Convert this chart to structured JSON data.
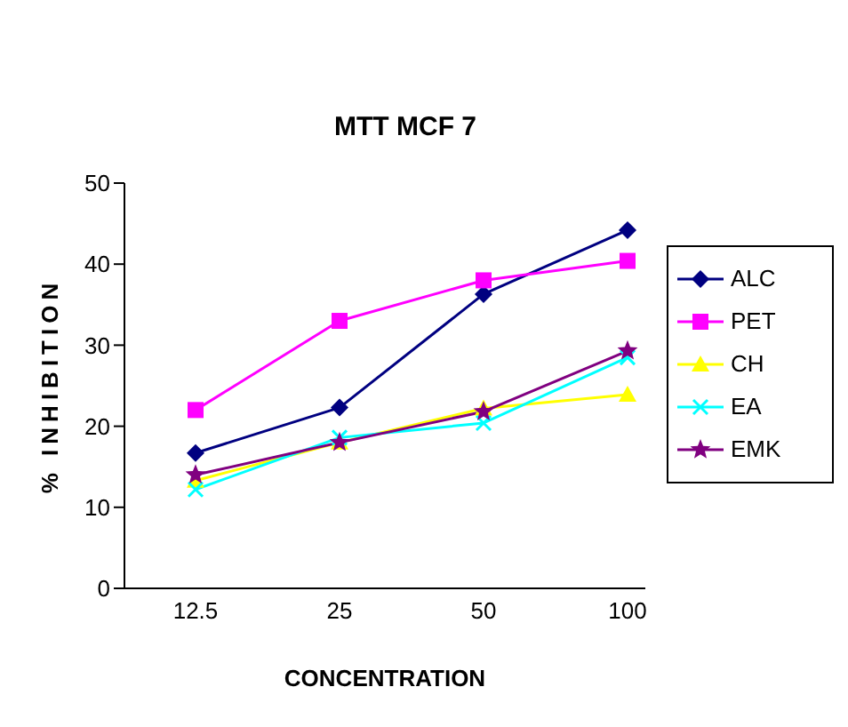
{
  "chart_data": {
    "type": "line",
    "title": "MTT MCF 7",
    "xlabel": "CONCENTRATION",
    "ylabel": "% INHIBITION",
    "categories": [
      "12.5",
      "25",
      "50",
      "100"
    ],
    "series": [
      {
        "name": "ALC",
        "color": "#000080",
        "marker": "diamond",
        "values": [
          16.7,
          22.3,
          36.3,
          44.2
        ]
      },
      {
        "name": "PET",
        "color": "#ff00ff",
        "marker": "square",
        "values": [
          22,
          33,
          38,
          40.4
        ]
      },
      {
        "name": "CH",
        "color": "#ffff00",
        "marker": "triangle",
        "values": [
          13.3,
          18,
          22.2,
          23.9
        ]
      },
      {
        "name": "EA",
        "color": "#00ffff",
        "marker": "cross",
        "values": [
          12.2,
          18.6,
          20.4,
          28.5
        ]
      },
      {
        "name": "EMK",
        "color": "#800080",
        "marker": "star",
        "values": [
          14,
          18,
          21.8,
          29.3
        ]
      }
    ],
    "ylim": [
      0,
      50
    ],
    "yticks": [
      0,
      10,
      20,
      30,
      40,
      50
    ],
    "grid": false,
    "legend": "right",
    "line_style": "solid"
  }
}
